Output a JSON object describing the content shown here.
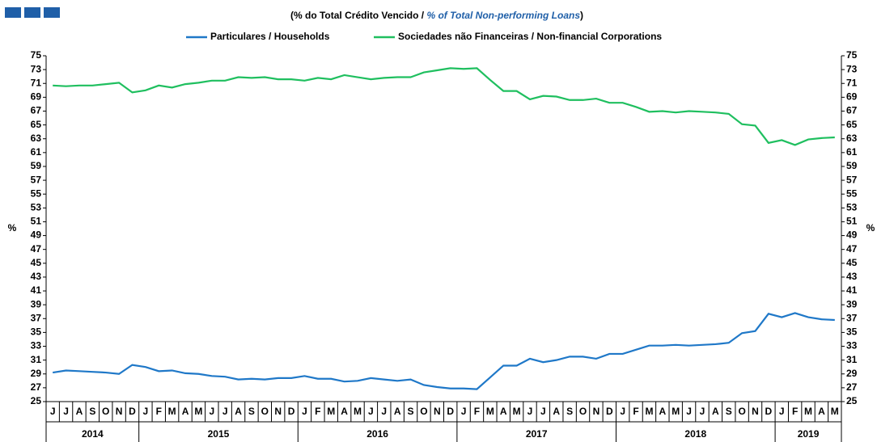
{
  "chart_data": {
    "type": "line",
    "title_parts": [
      "(% do Total Crédito Vencido / ",
      "% of Total Non-performing Loans",
      ")"
    ],
    "y_label": "%",
    "categories": [
      "J",
      "J",
      "A",
      "S",
      "O",
      "N",
      "D",
      "J",
      "F",
      "M",
      "A",
      "M",
      "J",
      "J",
      "A",
      "S",
      "O",
      "N",
      "D",
      "J",
      "F",
      "M",
      "A",
      "M",
      "J",
      "J",
      "A",
      "S",
      "O",
      "N",
      "D",
      "J",
      "F",
      "M",
      "A",
      "M",
      "J",
      "J",
      "A",
      "S",
      "O",
      "N",
      "D",
      "J",
      "F",
      "M",
      "A",
      "M",
      "J",
      "J",
      "A",
      "S",
      "O",
      "N",
      "D",
      "J",
      "F",
      "M",
      "A",
      "M"
    ],
    "groups": [
      {
        "label": "2014",
        "count": 7
      },
      {
        "label": "2015",
        "count": 12
      },
      {
        "label": "2016",
        "count": 12
      },
      {
        "label": "2017",
        "count": 12
      },
      {
        "label": "2018",
        "count": 12
      },
      {
        "label": "2019",
        "count": 5
      }
    ],
    "series": [
      {
        "name": "Particulares / Households",
        "color": "#1f78c8",
        "values": [
          29.2,
          29.5,
          29.4,
          29.3,
          29.2,
          29.0,
          30.3,
          30.0,
          29.4,
          29.5,
          29.1,
          29.0,
          28.7,
          28.6,
          28.2,
          28.3,
          28.2,
          28.4,
          28.4,
          28.7,
          28.3,
          28.3,
          27.9,
          28.0,
          28.4,
          28.2,
          28.0,
          28.2,
          27.4,
          27.1,
          26.9,
          26.9,
          26.8,
          28.5,
          30.2,
          30.2,
          31.2,
          30.7,
          31.0,
          31.5,
          31.5,
          31.2,
          31.9,
          31.9,
          32.5,
          33.1,
          33.1,
          33.2,
          33.1,
          33.2,
          33.3,
          33.5,
          34.9,
          35.2,
          37.7,
          37.2,
          37.8,
          37.2,
          36.9,
          36.8
        ]
      },
      {
        "name": "Sociedades não Financeiras / Non-financial Corporations",
        "color": "#1fbf5f",
        "values": [
          70.7,
          70.6,
          70.7,
          70.7,
          70.9,
          71.1,
          69.7,
          70.0,
          70.7,
          70.4,
          70.9,
          71.1,
          71.4,
          71.4,
          71.9,
          71.8,
          71.9,
          71.6,
          71.6,
          71.4,
          71.8,
          71.6,
          72.2,
          71.9,
          71.6,
          71.8,
          71.9,
          71.9,
          72.6,
          72.9,
          73.2,
          73.1,
          73.2,
          71.5,
          69.9,
          69.9,
          68.7,
          69.2,
          69.1,
          68.6,
          68.6,
          68.8,
          68.2,
          68.2,
          67.6,
          66.9,
          67.0,
          66.8,
          67.0,
          66.9,
          66.8,
          66.6,
          65.1,
          64.9,
          62.4,
          62.8,
          62.1,
          62.9,
          63.1,
          63.2
        ]
      }
    ],
    "ylim": [
      25,
      75
    ],
    "yticks": [
      25,
      27,
      29,
      31,
      33,
      35,
      37,
      39,
      41,
      43,
      45,
      47,
      49,
      51,
      53,
      55,
      57,
      59,
      61,
      63,
      65,
      67,
      69,
      71,
      73,
      75
    ]
  }
}
